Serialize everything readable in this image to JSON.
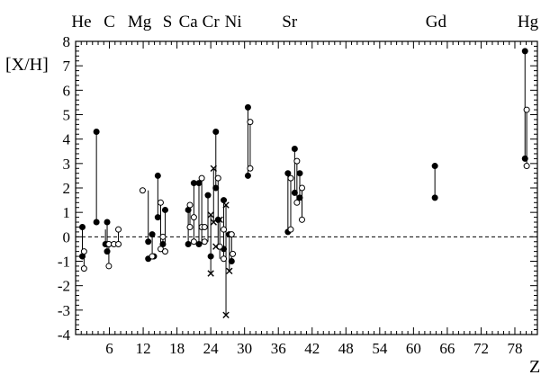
{
  "chart_data": {
    "type": "scatter",
    "xlabel": "Z",
    "ylabel": "[X/H]",
    "xlim": [
      0,
      82
    ],
    "ylim": [
      -4,
      8
    ],
    "xticks": [
      6,
      12,
      18,
      24,
      30,
      36,
      42,
      48,
      54,
      60,
      66,
      72,
      78
    ],
    "yticks": [
      -4,
      -3,
      -2,
      -1,
      0,
      1,
      2,
      3,
      4,
      5,
      6,
      7,
      8
    ],
    "reference_line": 0,
    "grid": false,
    "element_labels": [
      {
        "label": "He",
        "z": 2
      },
      {
        "label": "C",
        "z": 6
      },
      {
        "label": "Mg",
        "z": 12
      },
      {
        "label": "S",
        "z": 16
      },
      {
        "label": "Ca",
        "z": 20
      },
      {
        "label": "Cr",
        "z": 24
      },
      {
        "label": "Ni",
        "z": 28
      },
      {
        "label": "Sr",
        "z": 38
      },
      {
        "label": "Gd",
        "z": 64
      },
      {
        "label": "Hg",
        "z": 80
      }
    ],
    "ranges": [
      {
        "x": 1.2,
        "y1": -0.8,
        "y2": 0.4
      },
      {
        "x": 1.5,
        "y1": -1.3,
        "y2": -0.6
      },
      {
        "x": 3.7,
        "y1": 0.6,
        "y2": 4.3
      },
      {
        "x": 5.3,
        "y1": -0.3,
        "y2": 0.3
      },
      {
        "x": 5.6,
        "y1": -0.6,
        "y2": 0.6
      },
      {
        "x": 5.9,
        "y1": -1.2,
        "y2": -0.3
      },
      {
        "x": 7.6,
        "y1": -0.3,
        "y2": 0.3
      },
      {
        "x": 12.9,
        "y1": -0.2,
        "y2": 1.9
      },
      {
        "x": 13.6,
        "y1": -0.8,
        "y2": 0.1
      },
      {
        "x": 14.6,
        "y1": 0.8,
        "y2": 2.5
      },
      {
        "x": 15.1,
        "y1": -0.3,
        "y2": 1.4
      },
      {
        "x": 15.5,
        "y1": -0.6,
        "y2": 0.0
      },
      {
        "x": 15.9,
        "y1": -0.3,
        "y2": 1.1
      },
      {
        "x": 20.0,
        "y1": -0.3,
        "y2": 1.1
      },
      {
        "x": 20.3,
        "y1": 0.4,
        "y2": 1.3
      },
      {
        "x": 21.0,
        "y1": -0.2,
        "y2": 2.2
      },
      {
        "x": 21.9,
        "y1": -0.3,
        "y2": 2.2
      },
      {
        "x": 22.4,
        "y1": -0.3,
        "y2": 2.4
      },
      {
        "x": 23.5,
        "y1": -0.2,
        "y2": 1.7
      },
      {
        "x": 24.0,
        "y1": -1.5,
        "y2": 0.9
      },
      {
        "x": 24.5,
        "y1": 0.6,
        "y2": 2.8
      },
      {
        "x": 24.9,
        "y1": 2.0,
        "y2": 4.3
      },
      {
        "x": 25.3,
        "y1": -0.4,
        "y2": 2.4
      },
      {
        "x": 25.6,
        "y1": -0.9,
        "y2": 0.7
      },
      {
        "x": 26.3,
        "y1": -0.8,
        "y2": 1.5
      },
      {
        "x": 26.7,
        "y1": -3.2,
        "y2": 1.3
      },
      {
        "x": 27.3,
        "y1": -1.4,
        "y2": 0.1
      },
      {
        "x": 27.7,
        "y1": -1.0,
        "y2": 0.1
      },
      {
        "x": 30.6,
        "y1": 2.5,
        "y2": 5.3
      },
      {
        "x": 31.0,
        "y1": 2.8,
        "y2": 4.7
      },
      {
        "x": 37.7,
        "y1": 0.2,
        "y2": 2.6
      },
      {
        "x": 38.2,
        "y1": 0.3,
        "y2": 2.4
      },
      {
        "x": 38.9,
        "y1": 1.8,
        "y2": 3.6
      },
      {
        "x": 39.3,
        "y1": 1.4,
        "y2": 3.1
      },
      {
        "x": 39.8,
        "y1": 1.6,
        "y2": 2.6
      },
      {
        "x": 40.2,
        "y1": 0.7,
        "y2": 2.0
      },
      {
        "x": 63.8,
        "y1": 1.6,
        "y2": 2.9
      },
      {
        "x": 79.8,
        "y1": 3.2,
        "y2": 7.6
      },
      {
        "x": 80.1,
        "y1": 2.9,
        "y2": 5.2
      }
    ],
    "points_filled": [
      [
        1.2,
        0.4
      ],
      [
        1.2,
        -0.8
      ],
      [
        3.7,
        4.3
      ],
      [
        3.7,
        0.6
      ],
      [
        5.3,
        -0.3
      ],
      [
        5.6,
        0.6
      ],
      [
        5.6,
        -0.6
      ],
      [
        12.9,
        -0.2
      ],
      [
        12.9,
        -0.9
      ],
      [
        13.6,
        0.1
      ],
      [
        13.9,
        -0.8
      ],
      [
        14.6,
        2.5
      ],
      [
        14.6,
        0.8
      ],
      [
        15.5,
        -0.3
      ],
      [
        15.9,
        1.1
      ],
      [
        20.0,
        1.1
      ],
      [
        20.0,
        -0.3
      ],
      [
        21.0,
        2.2
      ],
      [
        21.9,
        2.2
      ],
      [
        21.9,
        -0.3
      ],
      [
        23.5,
        1.7
      ],
      [
        24.0,
        -0.8
      ],
      [
        24.9,
        4.3
      ],
      [
        24.9,
        2.0
      ],
      [
        25.3,
        0.7
      ],
      [
        26.3,
        1.5
      ],
      [
        26.3,
        -0.5
      ],
      [
        27.3,
        0.1
      ],
      [
        27.7,
        -1.0
      ],
      [
        30.6,
        5.3
      ],
      [
        30.6,
        2.5
      ],
      [
        37.7,
        2.6
      ],
      [
        37.7,
        0.2
      ],
      [
        38.9,
        3.6
      ],
      [
        38.9,
        1.8
      ],
      [
        39.8,
        2.6
      ],
      [
        39.8,
        1.6
      ],
      [
        63.8,
        2.9
      ],
      [
        63.8,
        1.6
      ],
      [
        79.8,
        7.6
      ],
      [
        79.8,
        3.2
      ]
    ],
    "points_open": [
      [
        1.5,
        -0.6
      ],
      [
        1.5,
        -1.3
      ],
      [
        5.9,
        -1.2
      ],
      [
        5.9,
        -0.3
      ],
      [
        6.8,
        -0.3
      ],
      [
        7.6,
        0.3
      ],
      [
        7.6,
        -0.3
      ],
      [
        11.9,
        1.9
      ],
      [
        13.6,
        -0.8
      ],
      [
        15.1,
        1.4
      ],
      [
        15.1,
        -0.5
      ],
      [
        15.5,
        0.0
      ],
      [
        15.9,
        -0.6
      ],
      [
        20.3,
        1.3
      ],
      [
        20.3,
        0.4
      ],
      [
        21.0,
        0.8
      ],
      [
        21.0,
        -0.2
      ],
      [
        22.4,
        2.4
      ],
      [
        22.4,
        0.4
      ],
      [
        22.9,
        0.4
      ],
      [
        22.9,
        -0.2
      ],
      [
        25.3,
        2.4
      ],
      [
        25.6,
        -0.4
      ],
      [
        26.3,
        0.3
      ],
      [
        26.3,
        -0.9
      ],
      [
        27.7,
        0.1
      ],
      [
        27.9,
        -0.7
      ],
      [
        31.0,
        4.7
      ],
      [
        31.0,
        2.8
      ],
      [
        38.2,
        2.4
      ],
      [
        38.2,
        0.3
      ],
      [
        39.3,
        3.1
      ],
      [
        39.3,
        1.4
      ],
      [
        40.2,
        2.0
      ],
      [
        40.2,
        0.7
      ],
      [
        80.1,
        5.2
      ],
      [
        80.1,
        2.9
      ]
    ],
    "points_cross": [
      [
        24.0,
        0.9
      ],
      [
        24.0,
        -1.5
      ],
      [
        24.5,
        2.8
      ],
      [
        24.5,
        0.6
      ],
      [
        24.9,
        -0.4
      ],
      [
        25.6,
        0.7
      ],
      [
        26.7,
        1.3
      ],
      [
        26.7,
        -3.2
      ],
      [
        27.3,
        -1.4
      ]
    ]
  }
}
